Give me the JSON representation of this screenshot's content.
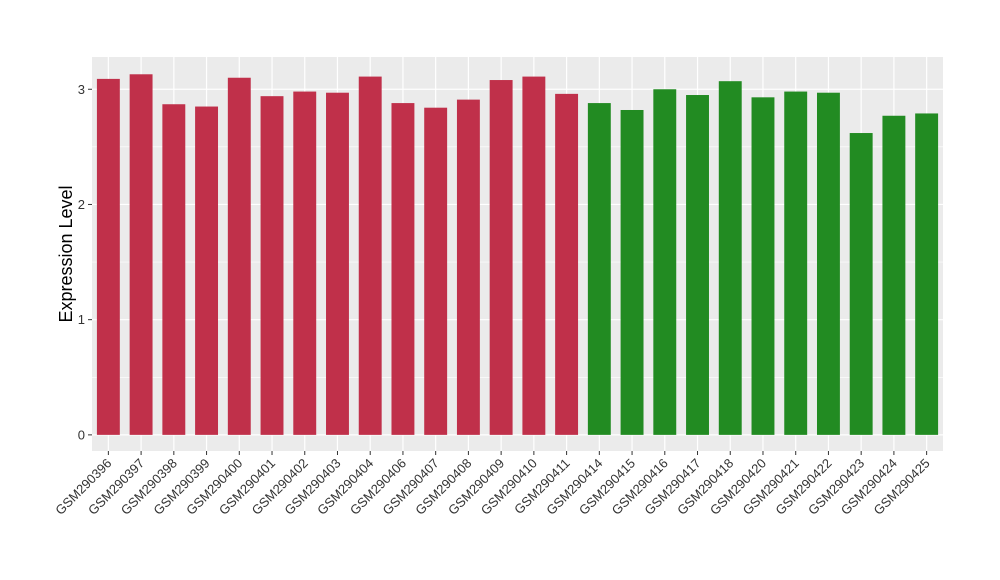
{
  "chart_data": {
    "type": "bar",
    "title": "",
    "xlabel": "",
    "ylabel": "Expression Level",
    "ylim": [
      -0.14,
      3.28
    ],
    "yticks": [
      0,
      1,
      2,
      3
    ],
    "grid": true,
    "legend": "none",
    "categories": [
      "GSM290396",
      "GSM290397",
      "GSM290398",
      "GSM290399",
      "GSM290400",
      "GSM290401",
      "GSM290402",
      "GSM290403",
      "GSM290404",
      "GSM290406",
      "GSM290407",
      "GSM290408",
      "GSM290409",
      "GSM290410",
      "GSM290411",
      "GSM290414",
      "GSM290415",
      "GSM290416",
      "GSM290417",
      "GSM290418",
      "GSM290420",
      "GSM290421",
      "GSM290422",
      "GSM290423",
      "GSM290424",
      "GSM290425"
    ],
    "values": [
      3.09,
      3.13,
      2.87,
      2.85,
      3.1,
      2.94,
      2.98,
      2.97,
      3.11,
      2.88,
      2.84,
      2.91,
      3.08,
      3.11,
      2.96,
      2.88,
      2.82,
      3.0,
      2.95,
      3.07,
      2.93,
      2.98,
      2.97,
      2.62,
      2.77,
      2.79
    ],
    "groups": [
      "a",
      "a",
      "a",
      "a",
      "a",
      "a",
      "a",
      "a",
      "a",
      "a",
      "a",
      "a",
      "a",
      "a",
      "a",
      "b",
      "b",
      "b",
      "b",
      "b",
      "b",
      "b",
      "b",
      "b",
      "b",
      "b"
    ],
    "group_colors": {
      "a": "#c0304a",
      "b": "#228b22"
    },
    "panel_background": "#ebebeb",
    "grid_color": "#ffffff"
  }
}
